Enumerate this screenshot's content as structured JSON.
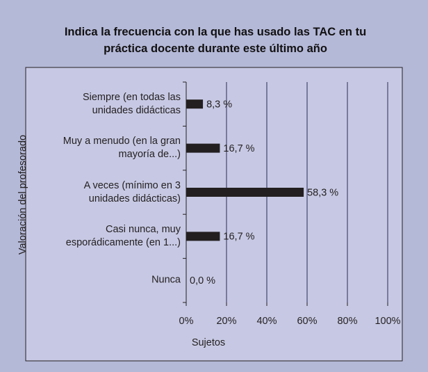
{
  "chart_data": {
    "type": "bar",
    "orientation": "horizontal",
    "title": "Indica la frecuencia con la que has usado las TAC en tu práctica docente durante este último año",
    "ylabel": "Valoración del profesorado",
    "xlabel": "Sujetos",
    "categories": [
      "Siempre (en todas las unidades didácticas",
      "Muy a menudo (en la gran mayoría de...)",
      "A veces (mínimo en 3 unidades didácticas)",
      "Casi nunca, muy esporádicamente (en 1...)",
      "Nunca"
    ],
    "values": [
      8.3,
      16.7,
      58.3,
      16.7,
      0.0
    ],
    "value_labels": [
      "8,3 %",
      "16,7 %",
      "58,3 %",
      "16,7 %",
      "0,0 %"
    ],
    "color": "#231f20",
    "xlim": [
      0,
      100
    ],
    "xticks": [
      {
        "value": 0,
        "label": "0%"
      },
      {
        "value": 20,
        "label": "20%"
      },
      {
        "value": 40,
        "label": "40%"
      },
      {
        "value": 60,
        "label": "60%"
      },
      {
        "value": 80,
        "label": "80%"
      },
      {
        "value": 100,
        "label": "100%"
      }
    ],
    "grid": true
  }
}
